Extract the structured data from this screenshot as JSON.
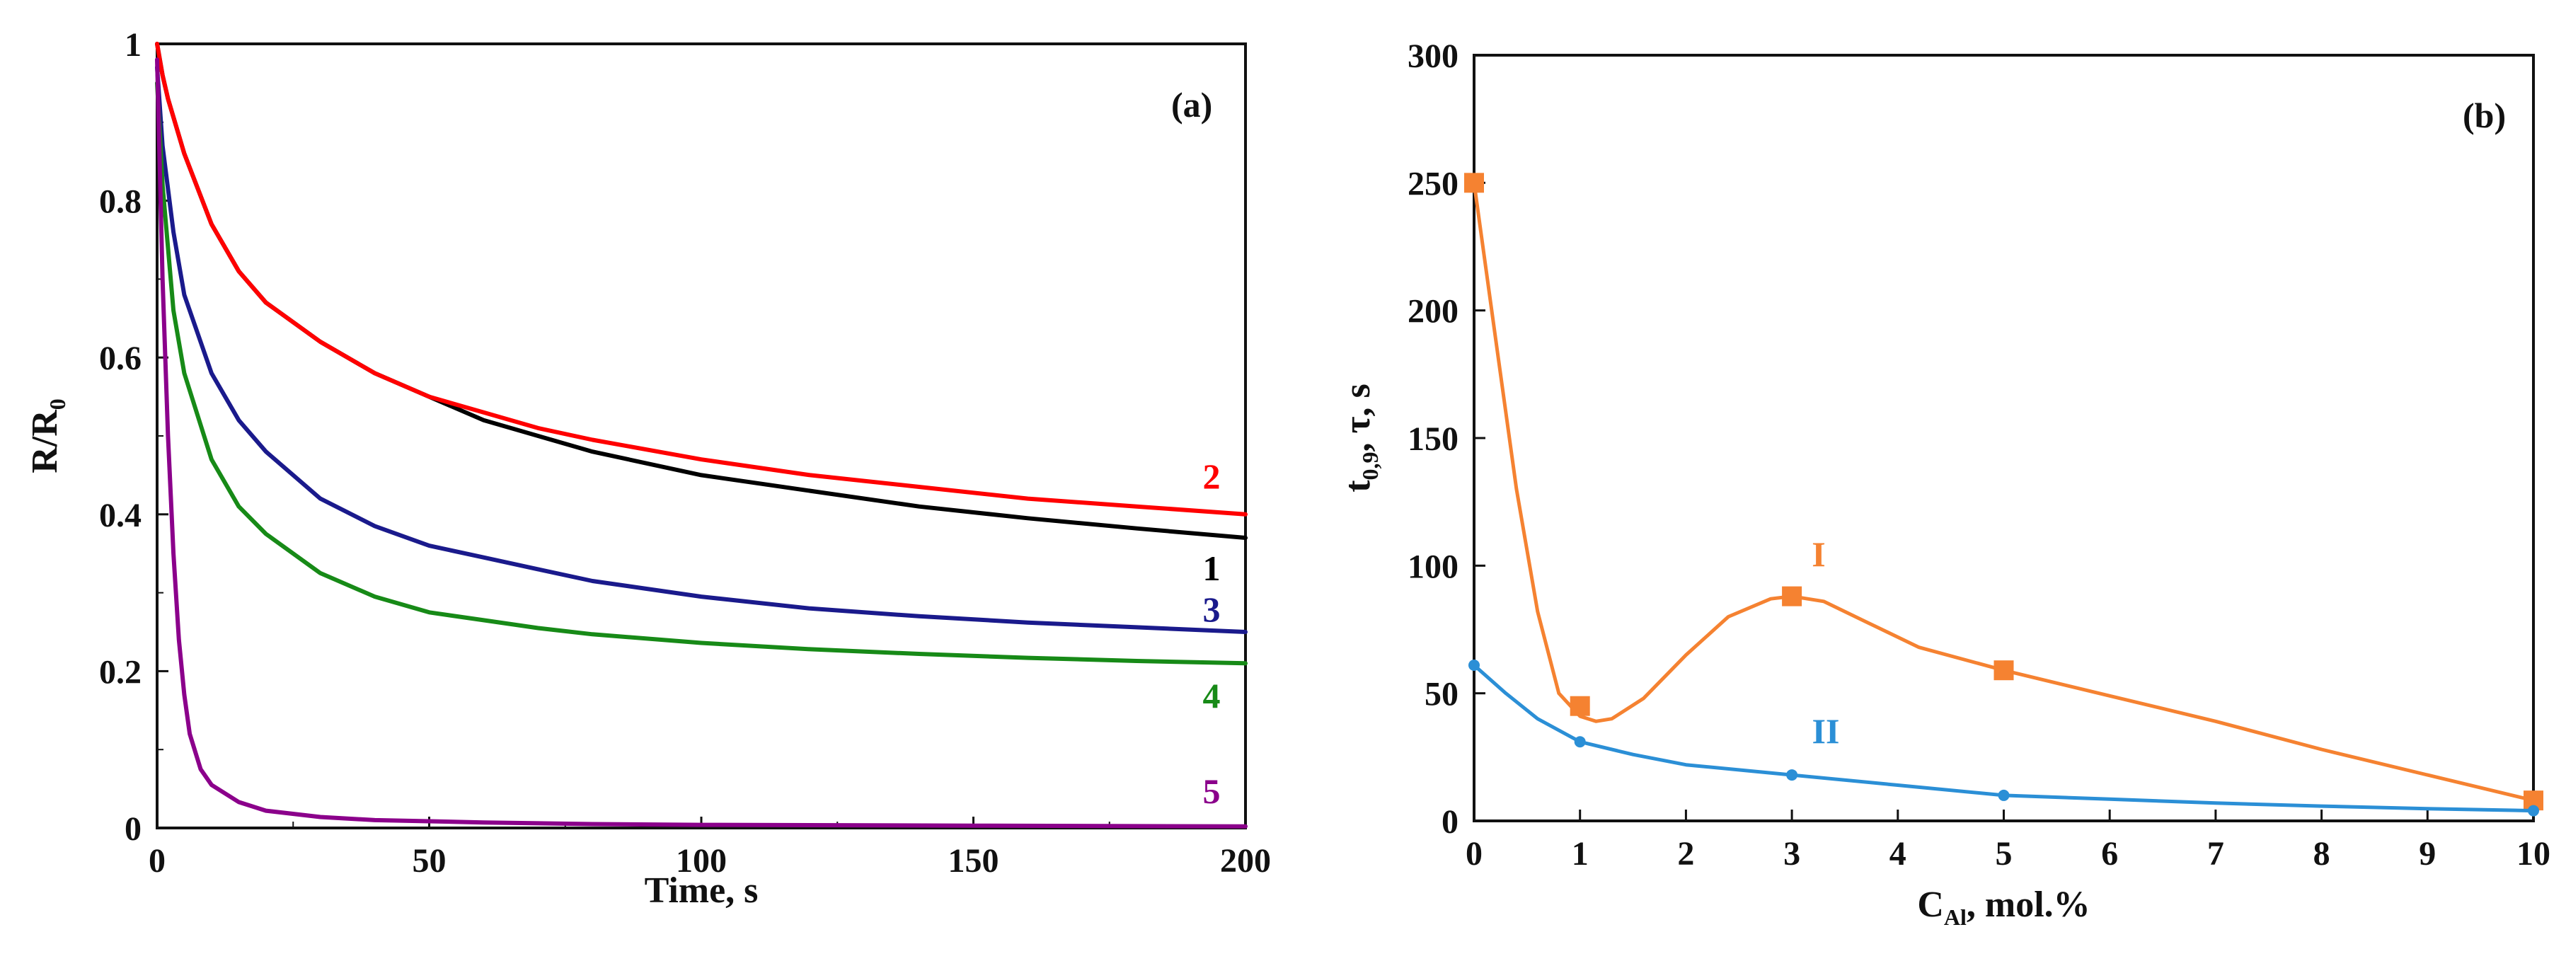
{
  "chart_data": [
    {
      "panel": "a",
      "type": "line",
      "panel_label": "(a)",
      "xlabel": "Time, s",
      "ylabel": {
        "main": "R/R",
        "sub": "0"
      },
      "xlim": [
        0,
        200
      ],
      "ylim": [
        0,
        1
      ],
      "x_ticks": [
        0,
        50,
        100,
        150,
        200
      ],
      "y_ticks": [
        0,
        0.2,
        0.4,
        0.6,
        0.8,
        1
      ],
      "y_tick_labels": [
        "0",
        "0.2",
        "0.4",
        "0.6",
        "0.8",
        "1"
      ],
      "series": [
        {
          "name": "1",
          "color": "#000000",
          "x": [
            0,
            1,
            2,
            5,
            10,
            15,
            20,
            30,
            40,
            50,
            60,
            70,
            80,
            100,
            120,
            140,
            160,
            180,
            200
          ],
          "y": [
            1.0,
            0.96,
            0.93,
            0.86,
            0.77,
            0.71,
            0.67,
            0.62,
            0.58,
            0.55,
            0.52,
            0.5,
            0.48,
            0.45,
            0.43,
            0.41,
            0.395,
            0.382,
            0.37
          ]
        },
        {
          "name": "2",
          "color": "#ff0000",
          "x": [
            0,
            1,
            2,
            5,
            10,
            15,
            20,
            30,
            40,
            50,
            60,
            70,
            80,
            100,
            120,
            140,
            160,
            180,
            200
          ],
          "y": [
            1.0,
            0.96,
            0.93,
            0.86,
            0.77,
            0.71,
            0.67,
            0.62,
            0.58,
            0.55,
            0.53,
            0.51,
            0.495,
            0.47,
            0.45,
            0.435,
            0.42,
            0.41,
            0.4
          ]
        },
        {
          "name": "3",
          "color": "#1a1a8c",
          "x": [
            0,
            1,
            3,
            5,
            10,
            15,
            20,
            30,
            40,
            50,
            60,
            70,
            80,
            100,
            120,
            140,
            160,
            180,
            200
          ],
          "y": [
            0.97,
            0.87,
            0.76,
            0.68,
            0.58,
            0.52,
            0.48,
            0.42,
            0.385,
            0.36,
            0.345,
            0.33,
            0.315,
            0.295,
            0.28,
            0.27,
            0.262,
            0.256,
            0.25
          ]
        },
        {
          "name": "4",
          "color": "#178a17",
          "x": [
            0,
            1,
            3,
            5,
            10,
            15,
            20,
            30,
            40,
            50,
            60,
            70,
            80,
            100,
            120,
            140,
            160,
            180,
            200
          ],
          "y": [
            0.95,
            0.82,
            0.66,
            0.58,
            0.47,
            0.41,
            0.375,
            0.325,
            0.295,
            0.275,
            0.265,
            0.255,
            0.247,
            0.236,
            0.228,
            0.222,
            0.217,
            0.213,
            0.21
          ]
        },
        {
          "name": "5",
          "color": "#8b008b",
          "x": [
            0,
            1,
            2,
            3,
            4,
            5,
            6,
            8,
            10,
            15,
            20,
            30,
            40,
            60,
            80,
            100,
            150,
            200
          ],
          "y": [
            0.98,
            0.7,
            0.5,
            0.35,
            0.24,
            0.17,
            0.12,
            0.075,
            0.055,
            0.033,
            0.022,
            0.014,
            0.01,
            0.007,
            0.005,
            0.004,
            0.003,
            0.002
          ]
        }
      ]
    },
    {
      "panel": "b",
      "type": "line",
      "panel_label": "(b)",
      "xlabel": {
        "main": "C",
        "sub": "Al",
        "rest": ", mol.%"
      },
      "ylabel": {
        "main": "t",
        "sub": "0,9",
        "rest": ", τ, s"
      },
      "xlim": [
        0,
        10
      ],
      "ylim": [
        0,
        300
      ],
      "x_ticks": [
        0,
        1,
        2,
        3,
        4,
        5,
        6,
        7,
        8,
        9,
        10
      ],
      "y_ticks": [
        0,
        50,
        100,
        150,
        200,
        250,
        300
      ],
      "series": [
        {
          "name": "I",
          "color": "#f58231",
          "marker": "square",
          "x": [
            0,
            1,
            3,
            5,
            10
          ],
          "y": [
            250,
            45,
            88,
            59,
            8
          ],
          "smooth": {
            "x": [
              0,
              0.2,
              0.4,
              0.6,
              0.8,
              1.0,
              1.15,
              1.3,
              1.6,
              2.0,
              2.4,
              2.8,
              3.0,
              3.3,
              3.7,
              4.2,
              5.0,
              6.0,
              7.0,
              8.0,
              9.0,
              10.0
            ],
            "y": [
              250,
              190,
              130,
              82,
              50,
              41,
              39,
              40,
              48,
              65,
              80,
              87,
              88,
              86,
              78,
              68,
              59,
              49,
              39,
              28,
              18,
              8
            ]
          }
        },
        {
          "name": "II",
          "color": "#2b8fd6",
          "marker": "dot",
          "x": [
            0,
            1,
            3,
            5,
            10
          ],
          "y": [
            61,
            31,
            18,
            10,
            4
          ],
          "smooth": {
            "x": [
              0,
              0.3,
              0.6,
              1.0,
              1.5,
              2.0,
              3.0,
              4.0,
              5.0,
              6.0,
              7.0,
              8.0,
              9.0,
              10.0
            ],
            "y": [
              61,
              50,
              40,
              31,
              26,
              22,
              18,
              14,
              10,
              8.5,
              7,
              5.8,
              4.8,
              4
            ]
          }
        }
      ]
    }
  ]
}
